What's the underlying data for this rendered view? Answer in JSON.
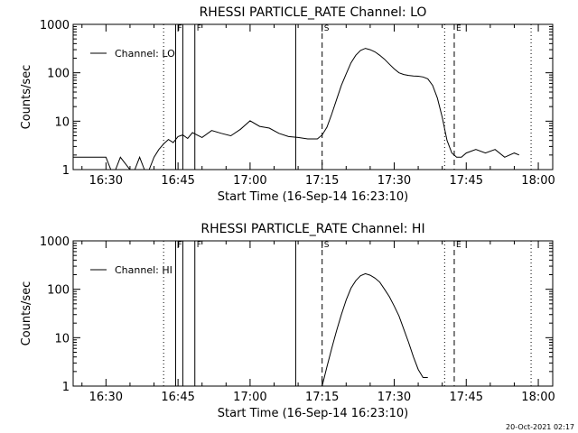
{
  "footer_timestamp": "20-Oct-2021 02:17",
  "chart_data": [
    {
      "type": "line",
      "title": "RHESSI PARTICLE_RATE Channel: LO",
      "xlabel": "Start Time (16-Sep-14 16:23:10)",
      "ylabel": "Counts/sec",
      "y_scale": "log",
      "ylim": [
        1,
        1000
      ],
      "xlim": [
        "16:23:10",
        "18:03"
      ],
      "x_ticks": [
        "16:30",
        "16:45",
        "17:00",
        "17:15",
        "17:30",
        "17:45",
        "18:00"
      ],
      "y_ticks": [
        "1",
        "10",
        "100",
        "1000"
      ],
      "legend": "top-left",
      "grid": false,
      "series": [
        {
          "name": "Channel: LO",
          "x": [
            "16:23:10",
            "16:30",
            "16:31",
            "16:32",
            "16:33",
            "16:35",
            "16:36",
            "16:37",
            "16:38",
            "16:39",
            "16:40",
            "16:41",
            "16:42",
            "16:43",
            "16:44",
            "16:45",
            "16:46",
            "16:47",
            "16:48",
            "16:50",
            "16:52",
            "16:54",
            "16:56",
            "16:58",
            "17:00",
            "17:02",
            "17:04",
            "17:06",
            "17:08",
            "17:10",
            "17:12",
            "17:14",
            "17:15",
            "17:16",
            "17:17",
            "17:18",
            "17:19",
            "17:20",
            "17:21",
            "17:22",
            "17:23",
            "17:24",
            "17:25",
            "17:26",
            "17:27",
            "17:28",
            "17:29",
            "17:30",
            "17:31",
            "17:32",
            "17:33",
            "17:34",
            "17:35",
            "17:36",
            "17:37",
            "17:38",
            "17:39",
            "17:40",
            "17:41",
            "17:42",
            "17:43",
            "17:44",
            "17:45",
            "17:47",
            "17:49",
            "17:51",
            "17:53",
            "17:55",
            "17:56"
          ],
          "y": [
            1.8,
            1.8,
            1,
            1,
            1.8,
            1,
            1,
            1.8,
            1,
            1,
            1.8,
            2.6,
            3.4,
            4.2,
            3.6,
            4.8,
            5.2,
            4.4,
            5.8,
            4.6,
            6.4,
            5.6,
            5.0,
            6.8,
            10.2,
            7.8,
            7.2,
            5.6,
            4.8,
            4.6,
            4.3,
            4.3,
            5.2,
            7.5,
            14,
            28,
            55,
            95,
            160,
            230,
            290,
            320,
            300,
            270,
            230,
            190,
            150,
            120,
            100,
            92,
            88,
            86,
            85,
            82,
            75,
            55,
            30,
            12,
            4.0,
            2.2,
            1.8,
            1.8,
            2.2,
            2.6,
            2.2,
            2.6,
            1.8,
            2.2,
            2.0
          ]
        }
      ],
      "vlines": [
        {
          "time": "16:42:00",
          "style": "dotted"
        },
        {
          "time": "16:44:30",
          "style": "solid",
          "label": "F"
        },
        {
          "time": "16:46:00",
          "style": "solid"
        },
        {
          "time": "16:48:30",
          "style": "solid",
          "label": "F"
        },
        {
          "time": "17:09:30",
          "style": "solid"
        },
        {
          "time": "17:15:00",
          "style": "dashed",
          "label": "S"
        },
        {
          "time": "17:40:30",
          "style": "dotted"
        },
        {
          "time": "17:42:30",
          "style": "dashed",
          "label": "E"
        },
        {
          "time": "17:58:30",
          "style": "dotted"
        }
      ]
    },
    {
      "type": "line",
      "title": "RHESSI PARTICLE_RATE Channel: HI",
      "xlabel": "Start Time (16-Sep-14 16:23:10)",
      "ylabel": "Counts/sec",
      "y_scale": "log",
      "ylim": [
        1,
        1000
      ],
      "xlim": [
        "16:23:10",
        "18:03"
      ],
      "x_ticks": [
        "16:30",
        "16:45",
        "17:00",
        "17:15",
        "17:30",
        "17:45",
        "18:00"
      ],
      "y_ticks": [
        "1",
        "10",
        "100",
        "1000"
      ],
      "legend": "top-left",
      "grid": false,
      "series": [
        {
          "name": "Channel: HI",
          "x": [
            "17:15:00",
            "17:16",
            "17:17",
            "17:18",
            "17:19",
            "17:20",
            "17:21",
            "17:22",
            "17:23",
            "17:24",
            "17:25",
            "17:26",
            "17:27",
            "17:28",
            "17:29",
            "17:30",
            "17:31",
            "17:32",
            "17:33",
            "17:34",
            "17:35",
            "17:36",
            "17:37"
          ],
          "y": [
            1,
            2.5,
            6,
            14,
            30,
            60,
            105,
            150,
            190,
            210,
            195,
            170,
            140,
            100,
            70,
            45,
            28,
            15,
            8,
            4,
            2.2,
            1.5,
            1.5
          ]
        }
      ],
      "vlines": [
        {
          "time": "16:42:00",
          "style": "dotted"
        },
        {
          "time": "16:44:30",
          "style": "solid",
          "label": "F"
        },
        {
          "time": "16:46:00",
          "style": "solid"
        },
        {
          "time": "16:48:30",
          "style": "solid",
          "label": "F"
        },
        {
          "time": "17:09:30",
          "style": "solid"
        },
        {
          "time": "17:15:00",
          "style": "dashed",
          "label": "S"
        },
        {
          "time": "17:40:30",
          "style": "dotted"
        },
        {
          "time": "17:42:30",
          "style": "dashed",
          "label": "E"
        },
        {
          "time": "17:58:30",
          "style": "dotted"
        }
      ]
    }
  ]
}
